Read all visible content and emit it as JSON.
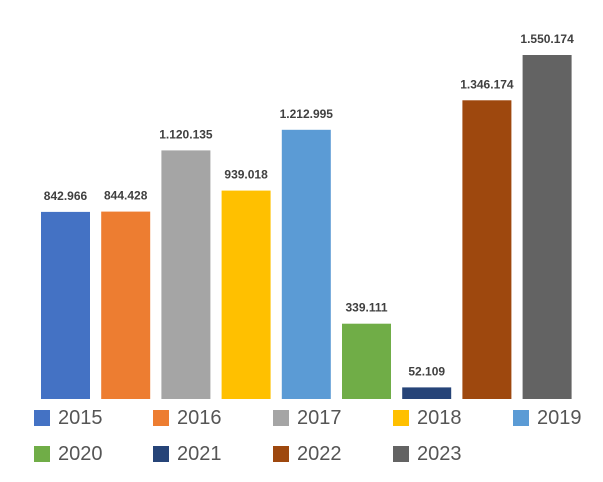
{
  "chart_data": {
    "type": "bar",
    "categories": [
      "2015",
      "2016",
      "2017",
      "2018",
      "2019",
      "2020",
      "2021",
      "2022",
      "2023"
    ],
    "values": [
      842966,
      844428,
      1120135,
      939018,
      1212995,
      339111,
      52109,
      1346174,
      1550174
    ],
    "data_labels": [
      "842.966",
      "844.428",
      "1.120.135",
      "939.018",
      "1.212.995",
      "339.111",
      "52.109",
      "1.346.174",
      "1.550.174"
    ],
    "colors": [
      "#4472C4",
      "#ED7D31",
      "#A5A5A5",
      "#FFC000",
      "#5B9BD5",
      "#70AD47",
      "#264478",
      "#9E480E",
      "#636363"
    ],
    "ylim": [
      0,
      1550174
    ],
    "grid": false,
    "legend_position": "bottom"
  }
}
